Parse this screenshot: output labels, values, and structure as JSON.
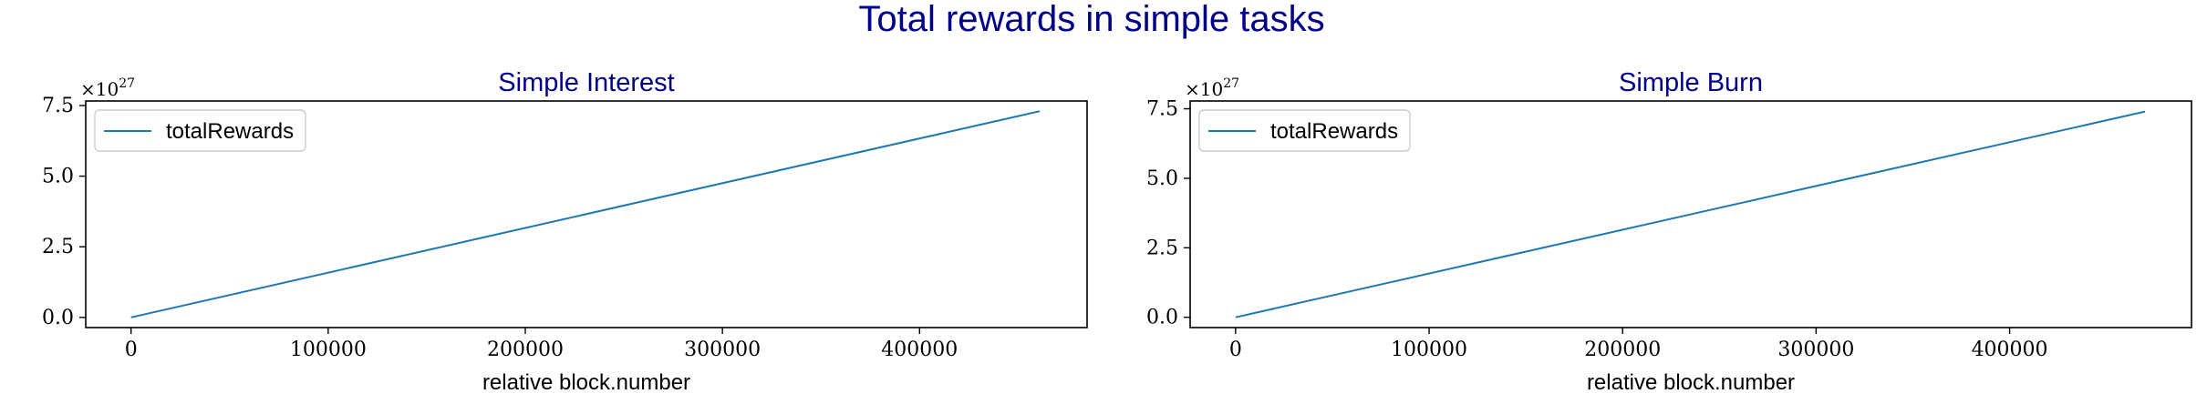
{
  "figure": {
    "suptitle": "Total rewards in simple tasks",
    "title_color": "#00008b",
    "line_color": "#1f77b4"
  },
  "chart_data": [
    {
      "type": "line",
      "title": "Simple Interest",
      "xlabel": "relative block.number",
      "ylabel": "",
      "xlim": [
        -23000,
        485000
      ],
      "ylim": [
        -0.36,
        7.66
      ],
      "y_scale_multiplier": "×10^27",
      "y_offset_base": "×10",
      "y_offset_exponent": "27",
      "xticks": [
        0,
        100000,
        200000,
        300000,
        400000
      ],
      "xtick_labels": [
        "0",
        "100000",
        "200000",
        "300000",
        "400000"
      ],
      "yticks": [
        0.0,
        2.5,
        5.0,
        7.5
      ],
      "ytick_labels": [
        "0.0",
        "2.5",
        "5.0",
        "7.5"
      ],
      "grid": false,
      "legend_position": "upper left",
      "series": [
        {
          "name": "totalRewards",
          "x": [
            0,
            461000
          ],
          "y": [
            0.0,
            7.3
          ]
        }
      ]
    },
    {
      "type": "line",
      "title": "Simple Burn",
      "xlabel": "relative block.number",
      "ylabel": "",
      "xlim": [
        -23500,
        494000
      ],
      "ylim": [
        -0.37,
        7.78
      ],
      "y_scale_multiplier": "×10^27",
      "y_offset_base": "×10",
      "y_offset_exponent": "27",
      "xticks": [
        0,
        100000,
        200000,
        300000,
        400000
      ],
      "xtick_labels": [
        "0",
        "100000",
        "200000",
        "300000",
        "400000"
      ],
      "yticks": [
        0.0,
        2.5,
        5.0,
        7.5
      ],
      "ytick_labels": [
        "0.0",
        "2.5",
        "5.0",
        "7.5"
      ],
      "grid": false,
      "legend_position": "upper left",
      "series": [
        {
          "name": "totalRewards",
          "x": [
            0,
            470000
          ],
          "y": [
            0.0,
            7.4
          ]
        }
      ]
    }
  ]
}
